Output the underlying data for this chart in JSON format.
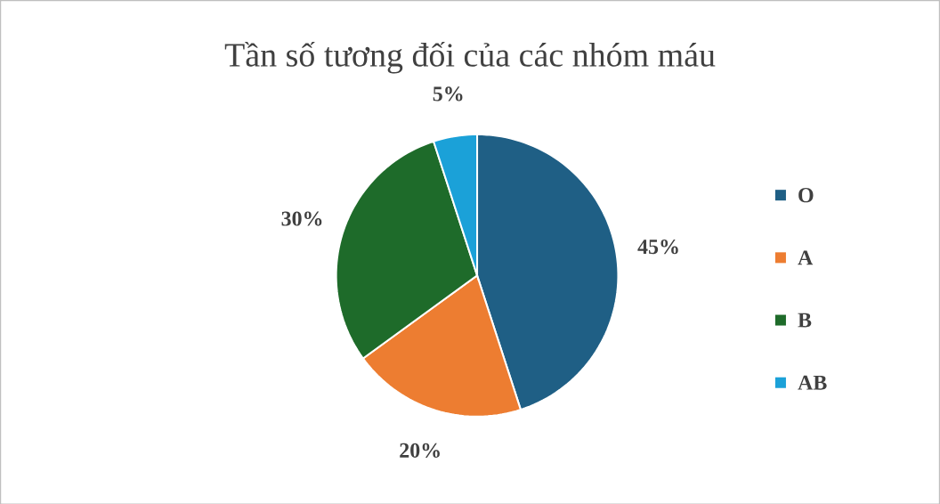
{
  "chart_data": {
    "type": "pie",
    "title": "Tần số tương đối của các nhóm máu",
    "categories": [
      "O",
      "A",
      "B",
      "AB"
    ],
    "values": [
      45,
      20,
      30,
      5
    ],
    "colors": [
      "#1f5f85",
      "#ed7d31",
      "#1e6b2a",
      "#1ba1d8"
    ],
    "value_labels": [
      "45%",
      "20%",
      "30%",
      "5%"
    ],
    "legend": "right"
  }
}
